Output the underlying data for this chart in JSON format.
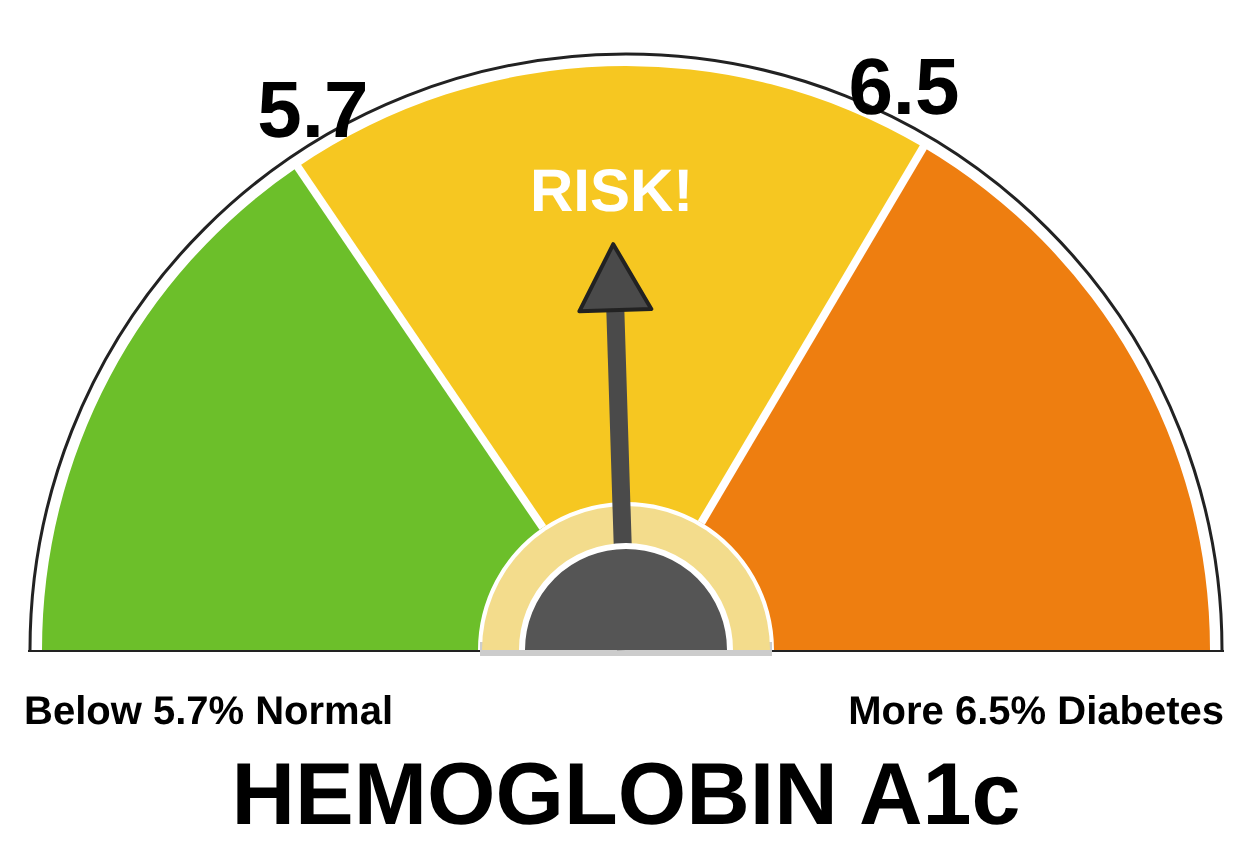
{
  "chart_data": {
    "type": "donut",
    "title": "HEMOGLOBIN A1c",
    "categories": [
      null,
      "RISK!",
      null
    ],
    "values": [
      31,
      36,
      33
    ],
    "colors": [
      "#6cbf2a",
      "#f6c721",
      "#ee7e10"
    ],
    "needle": "RISK!",
    "annotations": [
      "5.7",
      "6.5",
      "Below 5.7% Normal",
      "More 6.5% Diabetes"
    ]
  }
}
